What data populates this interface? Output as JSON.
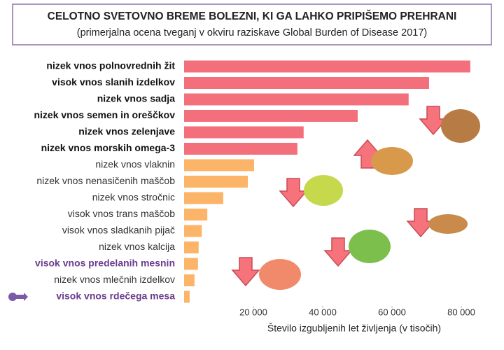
{
  "chart_data": {
    "type": "hbar",
    "title": "CELOTNO SVETOVNO BREME BOLEZNI, KI GA LAHKO PRIPIŠEMO PREHRANI",
    "subtitle": "(primerjalna ocena tveganj v okviru raziskave Global Burden of Disease 2017)",
    "x_label": "Število izgubljenih let življenja (v tisočih)",
    "categories": [
      "nizek vnos polnovrednih žit",
      "visok vnos slanih izdelkov",
      "nizek vnos sadja",
      "nizek vnos semen in oreščkov",
      "nizek vnos zelenjave",
      "nizek vnos morskih omega-3",
      "nizek vnos vlaknin",
      "nizek vnos nenasičenih maščob",
      "nizek vnos stročnic",
      "visok vnos trans maščob",
      "visok vnos sladkanih pijač",
      "nizek vnos kalcija",
      "visok vnos predelanih mesnin",
      "nizek vnos mlečnih izdelkov",
      "visok vnos rdečega mesa"
    ],
    "values": [
      82600,
      70700,
      64800,
      50100,
      34500,
      32700,
      20200,
      18400,
      11300,
      6700,
      5100,
      4200,
      4000,
      3000,
      1600
    ],
    "colors": [
      "#f36f7b",
      "#f36f7b",
      "#f36f7b",
      "#f36f7b",
      "#f36f7b",
      "#f36f7b",
      "#fcb469",
      "#fcb469",
      "#fcb469",
      "#fcb469",
      "#fcb469",
      "#fcb469",
      "#fcb469",
      "#fcb469",
      "#fcb469"
    ],
    "label_colors": [
      "#111",
      "#111",
      "#111",
      "#111",
      "#111",
      "#111",
      "#333",
      "#333",
      "#333",
      "#333",
      "#333",
      "#333",
      "#6b3c8c",
      "#333",
      "#6b3c8c"
    ],
    "xlim": [
      0,
      88000
    ],
    "xticks": [
      {
        "value": 20000,
        "label": "20 000"
      },
      {
        "value": 40000,
        "label": "40 000"
      },
      {
        "value": 60000,
        "label": "60 000"
      },
      {
        "value": 80000,
        "label": "80 000"
      }
    ]
  }
}
